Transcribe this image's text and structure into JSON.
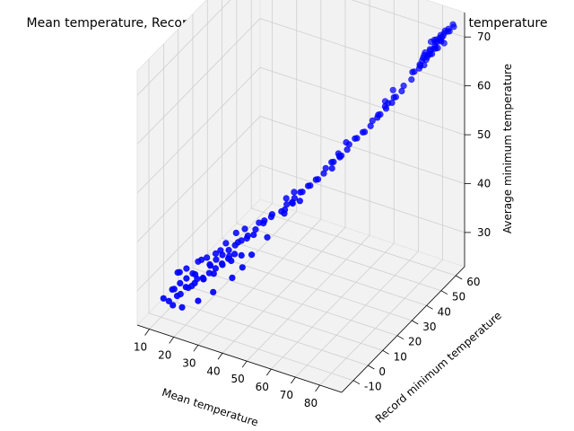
{
  "chart_data": {
    "type": "scatter",
    "projection": "3d",
    "title": "Mean temperature, Record minimum temperature, Average minimum temperature",
    "xlabel": "Mean temperature",
    "ylabel": "Record minimum temperature",
    "zlabel": "Average minimum temperature",
    "xlim": [
      5,
      89
    ],
    "ylim": [
      -18,
      66
    ],
    "zlim": [
      23,
      75
    ],
    "xticks": [
      10,
      20,
      30,
      40,
      50,
      60,
      70,
      80
    ],
    "yticks": [
      -10,
      0,
      10,
      20,
      30,
      40,
      50,
      60
    ],
    "zticks": [
      30,
      40,
      50,
      60,
      70
    ],
    "grid": true,
    "marker_color": "#0000ff",
    "pane_color": "#f2f2f2",
    "series": [
      {
        "color": "#0000ff",
        "points": [
          [
            11,
            -10,
            27
          ],
          [
            12,
            -8,
            26
          ],
          [
            13,
            -6,
            28
          ],
          [
            14,
            -9,
            29
          ],
          [
            15,
            -5,
            27
          ],
          [
            16,
            -7,
            30
          ],
          [
            17,
            -3,
            28
          ],
          [
            18,
            -6,
            31
          ],
          [
            19,
            -4,
            29
          ],
          [
            20,
            -2,
            30
          ],
          [
            21,
            -5,
            32
          ],
          [
            22,
            -1,
            30
          ],
          [
            23,
            -3,
            31
          ],
          [
            24,
            0,
            33
          ],
          [
            25,
            -2,
            32
          ],
          [
            26,
            1,
            34
          ],
          [
            27,
            -1,
            33
          ],
          [
            28,
            2,
            35
          ],
          [
            29,
            0,
            34
          ],
          [
            30,
            3,
            36
          ],
          [
            31,
            1,
            35
          ],
          [
            32,
            4,
            37
          ],
          [
            33,
            2,
            36
          ],
          [
            34,
            5,
            38
          ],
          [
            14,
            -4,
            31
          ],
          [
            17,
            0,
            30
          ],
          [
            20,
            1,
            33
          ],
          [
            23,
            2,
            32
          ],
          [
            26,
            4,
            35
          ],
          [
            29,
            5,
            34
          ],
          [
            32,
            6,
            37
          ],
          [
            35,
            7,
            38
          ],
          [
            12,
            -2,
            30
          ],
          [
            15,
            -1,
            31
          ],
          [
            18,
            2,
            32
          ],
          [
            21,
            3,
            33
          ],
          [
            24,
            4,
            34
          ],
          [
            27,
            6,
            36
          ],
          [
            30,
            8,
            38
          ],
          [
            33,
            9,
            39
          ],
          [
            16,
            -9,
            28
          ],
          [
            19,
            -8,
            30
          ],
          [
            22,
            -7,
            31
          ],
          [
            25,
            -6,
            32
          ],
          [
            28,
            -4,
            33
          ],
          [
            31,
            -3,
            35
          ],
          [
            34,
            -2,
            36
          ],
          [
            37,
            0,
            37
          ],
          [
            36,
            6,
            39
          ],
          [
            38,
            8,
            40
          ],
          [
            40,
            10,
            41
          ],
          [
            42,
            12,
            42
          ],
          [
            39,
            5,
            40
          ],
          [
            41,
            9,
            42
          ],
          [
            43,
            11,
            43
          ],
          [
            37,
            12,
            40
          ],
          [
            45,
            14,
            43
          ],
          [
            46,
            16,
            44
          ],
          [
            47,
            13,
            44
          ],
          [
            48,
            18,
            45
          ],
          [
            49,
            15,
            45
          ],
          [
            50,
            20,
            46
          ],
          [
            51,
            17,
            47
          ],
          [
            52,
            22,
            47
          ],
          [
            44,
            19,
            44
          ],
          [
            46,
            21,
            45
          ],
          [
            48,
            11,
            44
          ],
          [
            50,
            13,
            46
          ],
          [
            52,
            15,
            46
          ],
          [
            54,
            24,
            48
          ],
          [
            53,
            19,
            48
          ],
          [
            55,
            21,
            49
          ],
          [
            56,
            26,
            50
          ],
          [
            57,
            23,
            50
          ],
          [
            58,
            28,
            51
          ],
          [
            59,
            25,
            52
          ],
          [
            60,
            30,
            52
          ],
          [
            61,
            27,
            53
          ],
          [
            62,
            32,
            54
          ],
          [
            63,
            29,
            54
          ],
          [
            57,
            33,
            51
          ],
          [
            59,
            35,
            53
          ],
          [
            61,
            22,
            52
          ],
          [
            63,
            24,
            54
          ],
          [
            64,
            34,
            55
          ],
          [
            65,
            31,
            56
          ],
          [
            66,
            36,
            56
          ],
          [
            67,
            33,
            57
          ],
          [
            68,
            38,
            58
          ],
          [
            69,
            35,
            58
          ],
          [
            70,
            40,
            59
          ],
          [
            71,
            37,
            60
          ],
          [
            72,
            42,
            61
          ],
          [
            73,
            39,
            61
          ],
          [
            74,
            44,
            62
          ],
          [
            75,
            41,
            63
          ],
          [
            69,
            45,
            60
          ],
          [
            71,
            47,
            62
          ],
          [
            73,
            33,
            61
          ],
          [
            75,
            35,
            63
          ],
          [
            76,
            46,
            64
          ],
          [
            77,
            43,
            64
          ],
          [
            78,
            48,
            65
          ],
          [
            76,
            38,
            63
          ],
          [
            78,
            50,
            66
          ],
          [
            79,
            47,
            67
          ],
          [
            80,
            52,
            68
          ],
          [
            81,
            49,
            68
          ],
          [
            82,
            54,
            69
          ],
          [
            83,
            51,
            70
          ],
          [
            84,
            56,
            70
          ],
          [
            85,
            53,
            71
          ],
          [
            79,
            55,
            68
          ],
          [
            80,
            58,
            70
          ],
          [
            81,
            60,
            70
          ],
          [
            82,
            57,
            71
          ],
          [
            83,
            59,
            71
          ],
          [
            84,
            61,
            72
          ],
          [
            85,
            58,
            72
          ],
          [
            86,
            60,
            73
          ],
          [
            80,
            54,
            69
          ],
          [
            81,
            56,
            69
          ],
          [
            82,
            59,
            70
          ],
          [
            83,
            62,
            71
          ],
          [
            84,
            54,
            71
          ],
          [
            85,
            57,
            72
          ],
          [
            86,
            55,
            72
          ],
          [
            87,
            59,
            73
          ],
          [
            78,
            56,
            67
          ],
          [
            79,
            59,
            68
          ],
          [
            80,
            61,
            69
          ],
          [
            81,
            63,
            70
          ],
          [
            82,
            52,
            69
          ],
          [
            83,
            55,
            70
          ],
          [
            84,
            58,
            71
          ],
          [
            85,
            61,
            72
          ],
          [
            86,
            63,
            73
          ],
          [
            87,
            62,
            73
          ],
          [
            80,
            50,
            67
          ],
          [
            82,
            50,
            68
          ],
          [
            84,
            52,
            70
          ],
          [
            86,
            57,
            71
          ],
          [
            79,
            52,
            67
          ],
          [
            81,
            53,
            68
          ],
          [
            13,
            -7,
            25
          ],
          [
            18,
            -9,
            26
          ],
          [
            24,
            -8,
            28
          ],
          [
            29,
            -6,
            30
          ],
          [
            35,
            -3,
            33
          ],
          [
            40,
            2,
            37
          ],
          [
            44,
            6,
            40
          ],
          [
            38,
            -1,
            35
          ]
        ]
      }
    ]
  }
}
